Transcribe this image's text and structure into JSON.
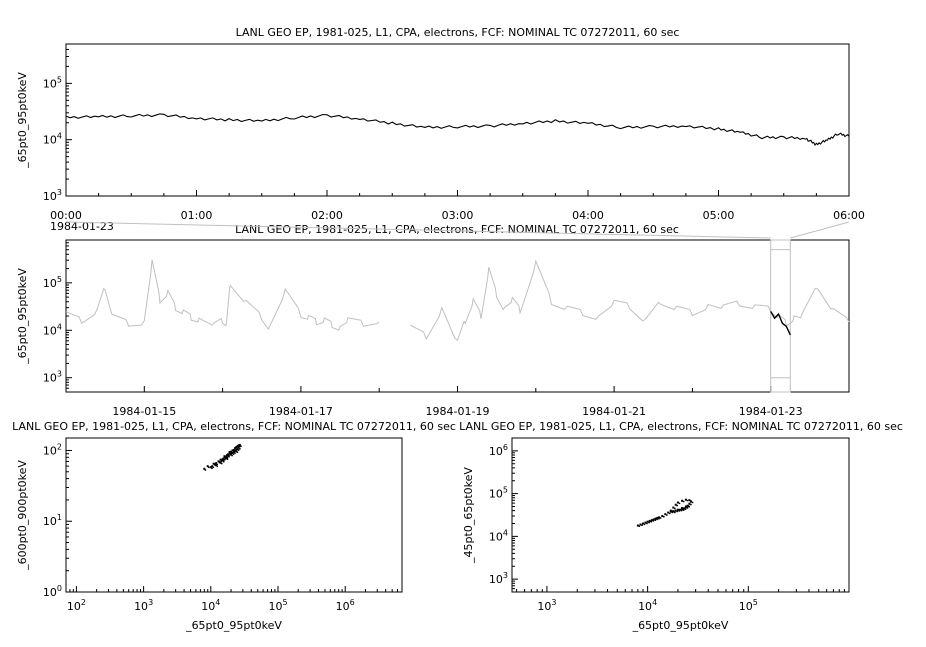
{
  "colors": {
    "primary": "#000000",
    "context": "#c0c0c0",
    "background": "#ffffff"
  },
  "chart_data": [
    {
      "type": "line",
      "title": "LANL GEO EP, 1981-025, L1, CPA, electrons, FCF: NOMINAL TC 07272011, 60 sec",
      "xlabel": "",
      "ylabel": "_65pt0_95pt0keV",
      "yscale": "log",
      "ylim": [
        1000,
        500000
      ],
      "xlim": [
        "1984-01-23 00:00",
        "1984-01-23 06:00"
      ],
      "x_ticks": [
        "00:00",
        "01:00",
        "02:00",
        "03:00",
        "04:00",
        "05:00",
        "06:00"
      ],
      "x_corner_label": "1984-01-23",
      "y_ticks": [
        {
          "base": "10",
          "exp": "3"
        },
        {
          "base": "10",
          "exp": "4"
        },
        {
          "base": "10",
          "exp": "5"
        }
      ],
      "series": [
        {
          "x": [
            "00:00",
            "00:15",
            "00:30",
            "00:45",
            "01:00",
            "01:15",
            "01:30",
            "01:45",
            "02:00",
            "02:15",
            "02:30",
            "02:45",
            "03:00",
            "03:15",
            "03:30",
            "03:45",
            "04:00",
            "04:15",
            "04:30",
            "04:45",
            "05:00",
            "05:10",
            "05:20",
            "05:30",
            "05:40",
            "05:45",
            "05:50",
            "05:55",
            "06:00"
          ],
          "values": [
            25000,
            25500,
            26500,
            27500,
            24000,
            22500,
            21500,
            24500,
            27000,
            23500,
            19500,
            16500,
            17000,
            17500,
            19500,
            21500,
            19500,
            16500,
            17000,
            17500,
            15500,
            13500,
            11000,
            11000,
            10500,
            8200,
            9800,
            12800,
            11500
          ]
        }
      ]
    },
    {
      "type": "line",
      "title": "LANL GEO EP, 1981-025, L1, CPA, electrons, FCF: NOMINAL TC 07272011, 60 sec",
      "xlabel": "",
      "ylabel": "_65pt0_95pt0keV",
      "yscale": "log",
      "ylim": [
        500,
        800000
      ],
      "xlim": [
        "1984-01-14",
        "1984-01-24"
      ],
      "x_ticks": [
        "1984-01-15",
        "1984-01-17",
        "1984-01-19",
        "1984-01-21",
        "1984-01-23"
      ],
      "y_ticks": [
        {
          "base": "10",
          "exp": "3"
        },
        {
          "base": "10",
          "exp": "4"
        },
        {
          "base": "10",
          "exp": "5"
        }
      ],
      "highlight_range": [
        "1984-01-23 00:00",
        "1984-01-23 06:00"
      ],
      "series": [
        {
          "x": [
            0,
            0.2,
            0.4,
            0.5,
            0.6,
            0.8,
            1,
            1.1,
            1.2,
            1.3,
            1.4,
            1.5,
            1.6,
            1.7,
            1.9,
            2.0,
            2.05,
            2.1,
            2.3,
            2.5,
            2.6,
            2.8,
            3.0,
            3.1,
            3.2,
            3.3,
            3.4,
            3.5,
            3.6,
            3.8,
            4.0,
            4.2,
            4.4,
            4.6,
            4.8,
            5.0,
            5.1,
            5.2,
            5.3,
            5.4,
            5.5,
            5.6,
            5.7,
            5.8,
            6.0,
            6.2,
            6.4,
            6.6,
            6.8,
            7.0,
            7.2,
            7.4,
            7.6,
            7.8,
            8.0,
            8.2,
            8.4,
            8.6,
            8.8,
            9.0,
            9.1,
            9.2,
            9.3,
            9.4,
            9.6,
            9.8,
            10
          ],
          "values": [
            20000,
            15000,
            25000,
            80000,
            20000,
            15000,
            16000,
            250000,
            40000,
            60000,
            30000,
            25000,
            20000,
            18000,
            12000,
            15000,
            13000,
            100000,
            40000,
            20000,
            12000,
            60000,
            20000,
            18000,
            15000,
            17000,
            14000,
            12000,
            15000,
            13000,
            15000,
            null,
            12000,
            8000,
            30000,
            5000,
            15000,
            40000,
            20000,
            200000,
            60000,
            30000,
            40000,
            25000,
            250000,
            40000,
            30000,
            25000,
            20000,
            35000,
            30000,
            15000,
            40000,
            30000,
            25000,
            35000,
            28000,
            35000,
            30000,
            28000,
            20000,
            15000,
            20000,
            18000,
            80000,
            25000,
            15000
          ]
        },
        {
          "x": [
            9.0,
            9.05,
            9.1,
            9.15,
            9.2,
            9.25
          ],
          "values": [
            25000,
            18000,
            22000,
            14000,
            12000,
            8000
          ]
        }
      ]
    },
    {
      "type": "scatter",
      "title": "LANL GEO EP, 1981-025, L1, CPA, electrons, FCF: NOMINAL TC 07272011, 60 sec",
      "xlabel": "_65pt0_95pt0keV",
      "ylabel": "_600pt0_900pt0keV",
      "xscale": "log",
      "yscale": "log",
      "xlim": [
        70,
        7000000
      ],
      "ylim": [
        1,
        150
      ],
      "x_ticks": [
        {
          "base": "10",
          "exp": "2"
        },
        {
          "base": "10",
          "exp": "3"
        },
        {
          "base": "10",
          "exp": "4"
        },
        {
          "base": "10",
          "exp": "5"
        },
        {
          "base": "10",
          "exp": "6"
        }
      ],
      "y_ticks": [
        {
          "base": "10",
          "exp": "0"
        },
        {
          "base": "10",
          "exp": "1"
        },
        {
          "base": "10",
          "exp": "2"
        }
      ],
      "x": [
        8000,
        9000,
        10000,
        11000,
        12000,
        13000,
        14000,
        15000,
        16000,
        17000,
        18000,
        19000,
        20000,
        21000,
        22000,
        23000,
        24000,
        25000,
        26000,
        15000,
        17000,
        19000,
        21000,
        23000,
        25000,
        12000,
        14000,
        16000,
        18000,
        20000,
        22000,
        24000,
        26000,
        27000,
        10500,
        11500,
        13500,
        15500,
        17500
      ],
      "y": [
        55,
        60,
        58,
        65,
        62,
        70,
        68,
        75,
        80,
        78,
        85,
        90,
        88,
        92,
        95,
        100,
        98,
        105,
        110,
        72,
        82,
        95,
        100,
        108,
        115,
        66,
        74,
        83,
        88,
        96,
        102,
        112,
        118,
        120,
        60,
        64,
        69,
        77,
        86
      ]
    },
    {
      "type": "scatter",
      "title": "LANL GEO EP, 1981-025, L1, CPA, electrons, FCF: NOMINAL TC 07272011, 60 sec",
      "xlabel": "_65pt0_95pt0keV",
      "ylabel": "_45pt0_65pt0keV",
      "xscale": "log",
      "yscale": "log",
      "xlim": [
        450,
        1000000
      ],
      "ylim": [
        500,
        2000000
      ],
      "x_ticks": [
        {
          "base": "10",
          "exp": "3"
        },
        {
          "base": "10",
          "exp": "4"
        },
        {
          "base": "10",
          "exp": "5"
        }
      ],
      "y_ticks": [
        {
          "base": "10",
          "exp": "3"
        },
        {
          "base": "10",
          "exp": "4"
        },
        {
          "base": "10",
          "exp": "5"
        },
        {
          "base": "10",
          "exp": "6"
        }
      ],
      "x": [
        8000,
        8500,
        9000,
        9500,
        10000,
        10500,
        11000,
        11500,
        12000,
        12500,
        13000,
        14000,
        15000,
        16000,
        17000,
        18000,
        19000,
        20000,
        21000,
        22000,
        23000,
        24000,
        25000,
        26000,
        27000,
        26000,
        24000,
        22000,
        20000,
        19000,
        18000,
        17000,
        18000,
        20000,
        22000,
        24000,
        25000
      ],
      "y": [
        18000,
        19000,
        20000,
        21000,
        22000,
        23000,
        24000,
        25000,
        26000,
        27000,
        28000,
        30000,
        33000,
        36000,
        38000,
        39000,
        40000,
        41000,
        42000,
        43000,
        45000,
        48000,
        52000,
        58000,
        65000,
        70000,
        72000,
        68000,
        62000,
        55000,
        47000,
        40000,
        38000,
        42000,
        46000,
        50000,
        52000
      ]
    }
  ]
}
